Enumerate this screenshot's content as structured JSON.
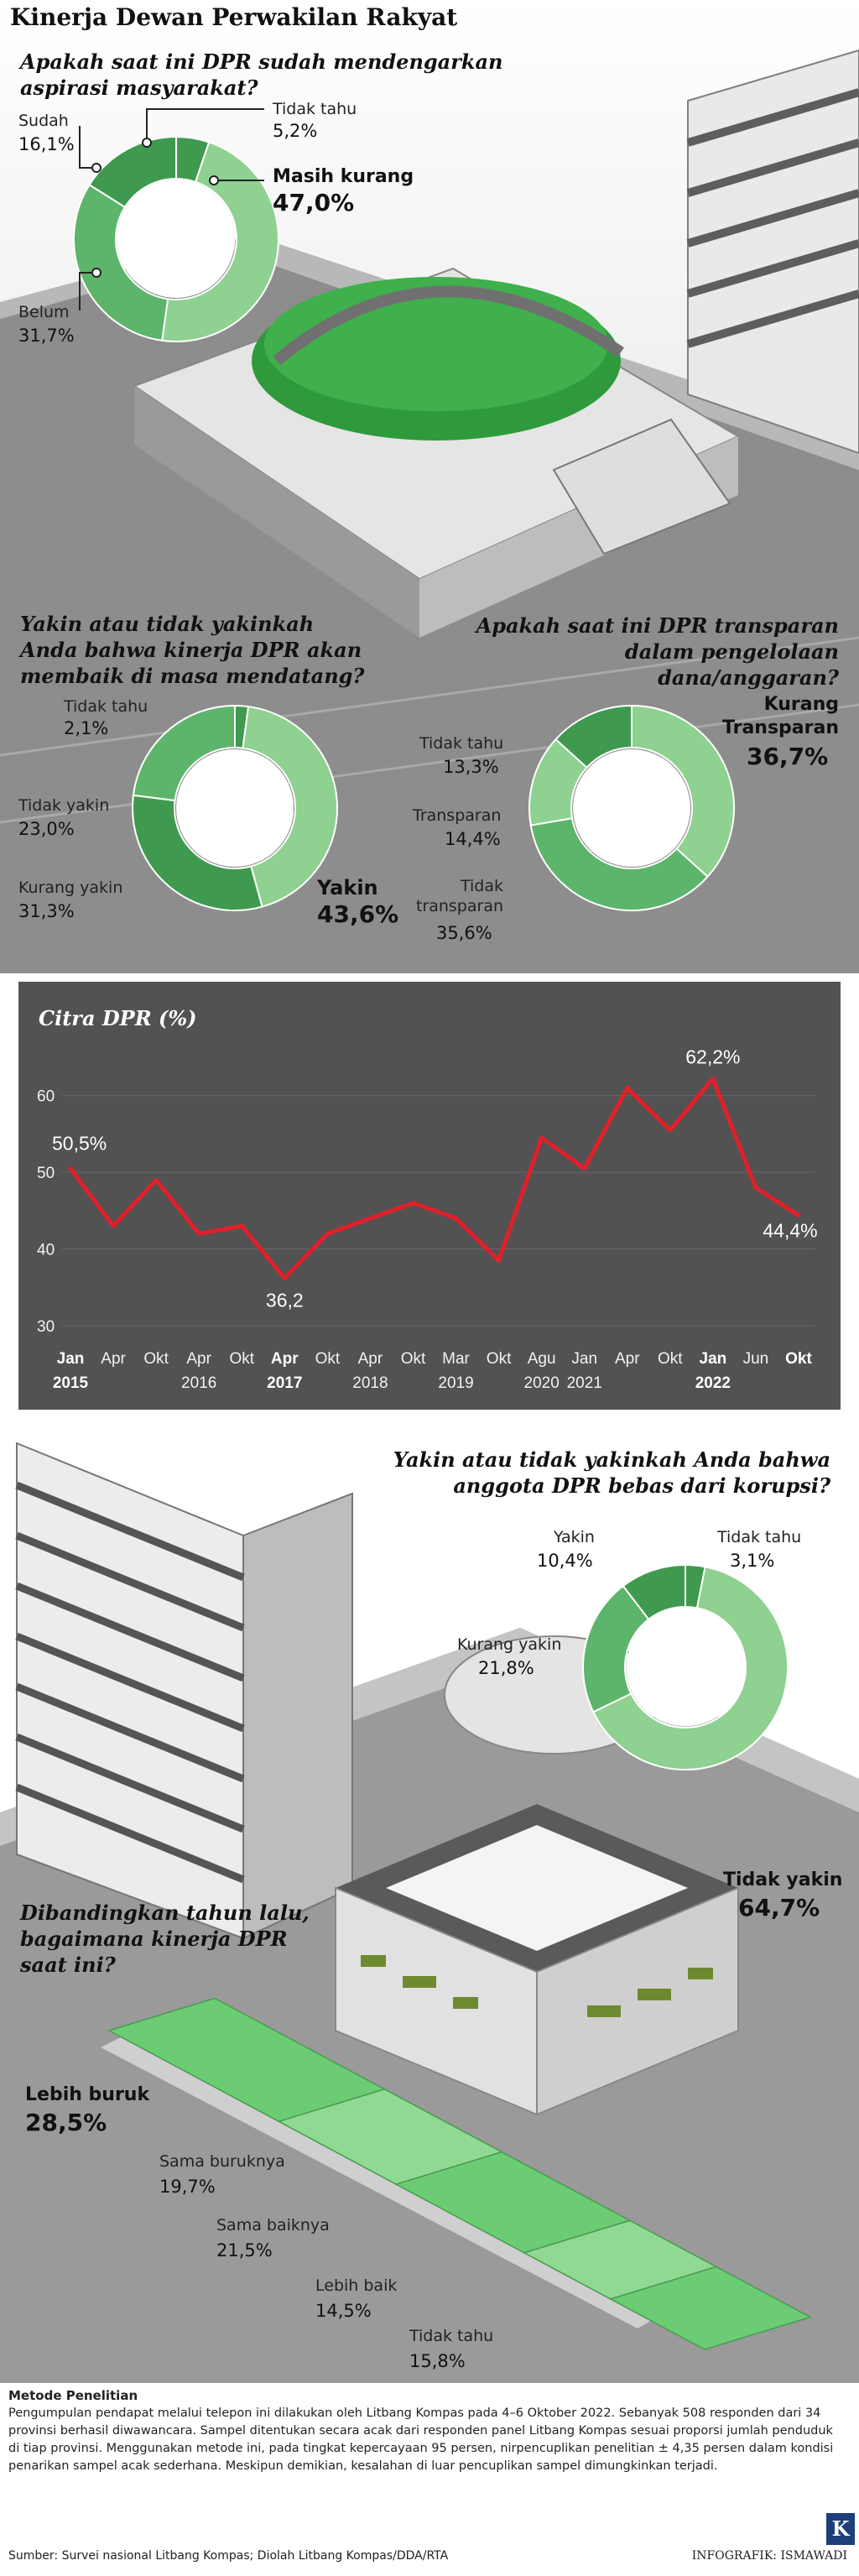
{
  "title": "Kinerja Dewan Perwakilan Rakyat",
  "q1": {
    "question": "Apakah saat ini DPR sudah mendengarkan aspirasi masyarakat?",
    "items": [
      {
        "label": "Tidak tahu",
        "value": "5,2%"
      },
      {
        "label": "Masih kurang",
        "value": "47,0%"
      },
      {
        "label": "Belum",
        "value": "31,7%"
      },
      {
        "label": "Sudah",
        "value": "16,1%"
      }
    ]
  },
  "q2": {
    "question": "Yakin atau tidak yakinkah Anda bahwa kinerja DPR akan membaik di masa mendatang?",
    "items": [
      {
        "label": "Tidak tahu",
        "value": "2,1%"
      },
      {
        "label": "Yakin",
        "value": "43,6%"
      },
      {
        "label": "Kurang yakin",
        "value": "31,3%"
      },
      {
        "label": "Tidak yakin",
        "value": "23,0%"
      }
    ]
  },
  "q3": {
    "question": "Apakah saat ini DPR transparan dalam pengelolaan dana/anggaran?",
    "items": [
      {
        "label": "Kurang Transparan",
        "value": "36,7%"
      },
      {
        "label": "Tidak transparan",
        "value": "35,6%"
      },
      {
        "label": "Transparan",
        "value": "14,4%"
      },
      {
        "label": "Tidak tahu",
        "value": "13,3%"
      }
    ]
  },
  "q4": {
    "question": "Yakin atau tidak yakinkah Anda bahwa anggota DPR bebas dari korupsi?",
    "items": [
      {
        "label": "Tidak tahu",
        "value": "3,1%"
      },
      {
        "label": "Tidak yakin",
        "value": "64,7%"
      },
      {
        "label": "Kurang yakin",
        "value": "21,8%"
      },
      {
        "label": "Yakin",
        "value": "10,4%"
      }
    ]
  },
  "q5": {
    "question": "Dibandingkan tahun lalu, bagaimana kinerja DPR saat ini?",
    "items": [
      {
        "label": "Lebih buruk",
        "value": "28,5%"
      },
      {
        "label": "Sama buruknya",
        "value": "19,7%"
      },
      {
        "label": "Sama baiknya",
        "value": "21,5%"
      },
      {
        "label": "Lebih baik",
        "value": "14,5%"
      },
      {
        "label": "Tidak tahu",
        "value": "15,8%"
      }
    ]
  },
  "method": {
    "title": "Metode Penelitian",
    "text": "Pengumpulan pendapat melalui telepon ini dilakukan oleh Litbang Kompas pada 4–6 Oktober 2022. Sebanyak 508 responden dari 34 provinsi berhasil diwawancara. Sampel ditentukan secara acak dari responden panel Litbang Kompas sesuai proporsi jumlah penduduk di tiap provinsi. Menggunakan metode ini, pada tingkat kepercayaan 95 persen, nirpencuplikan penelitian ± 4,35 persen dalam kondisi penarikan sampel acak sederhana. Meskipun demikian, kesalahan di luar pencuplikan sampel dimungkinkan terjadi."
  },
  "source": "Sumber: Survei nasional Litbang Kompas; Diolah Litbang Kompas/DDA/RTA",
  "credit": "INFOGRAFIK: ISMAWADI",
  "logo": "K",
  "colors": {
    "green_dark": "#3f9a4f",
    "green_mid": "#5cb56a",
    "green_light": "#8ed190",
    "line": "#e0202a",
    "panel": "#525252"
  },
  "chart_data": {
    "type": "line",
    "title": "Citra DPR (%)",
    "xlabel": "",
    "ylabel": "",
    "ylim": [
      30,
      65
    ],
    "yticks": [
      30,
      40,
      50,
      60
    ],
    "x_months": [
      "Jan",
      "Apr",
      "Okt",
      "Apr",
      "Okt",
      "Apr",
      "Okt",
      "Apr",
      "Okt",
      "Mar",
      "Okt",
      "Agu",
      "Jan",
      "Apr",
      "Okt",
      "Jan",
      "Jun",
      "Okt"
    ],
    "x_years": [
      "2015",
      "",
      "",
      "2016",
      "",
      "2017",
      "",
      "2018",
      "",
      "2019",
      "",
      "2020",
      "2021",
      "",
      "",
      "2022",
      "",
      ""
    ],
    "bold_ticks": [
      0,
      5,
      15,
      17
    ],
    "values": [
      50.5,
      43,
      49,
      42,
      43,
      36.2,
      42,
      44,
      46,
      44,
      38.5,
      54.5,
      50.5,
      61,
      55.5,
      62.2,
      48,
      44.4
    ],
    "data_labels": [
      {
        "index": 0,
        "text": "50,5%"
      },
      {
        "index": 5,
        "text": "36,2"
      },
      {
        "index": 15,
        "text": "62,2%"
      },
      {
        "index": 17,
        "text": "44,4%"
      }
    ]
  }
}
